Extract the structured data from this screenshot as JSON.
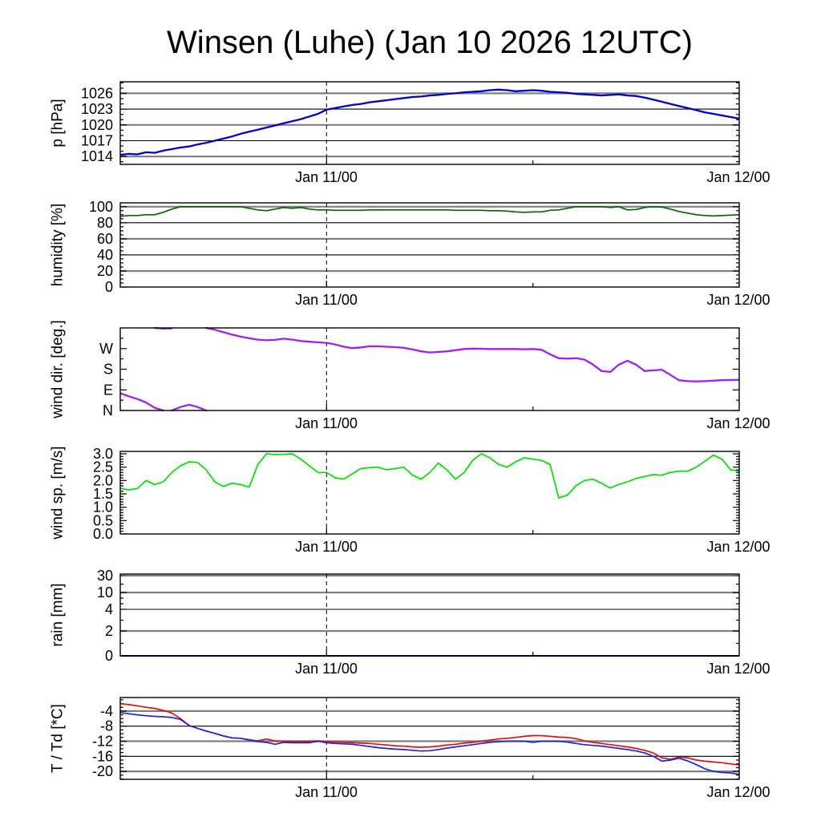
{
  "title": "Winsen (Luhe) (Jan 10 2026 12UTC)",
  "x_axis": {
    "tick_labels": [
      "Jan 11/00",
      "Jan 12/00"
    ],
    "major_tick_hours": [
      12,
      36
    ],
    "minor_tick_hours": [
      24
    ],
    "dashed_line_hours": [
      12
    ],
    "span_hours": 36
  },
  "chart_data": [
    {
      "key": "pressure",
      "type": "line",
      "ylabel": "p [hPa]",
      "scale": [
        [
          1012.5,
          0
        ],
        [
          1028.2,
          1
        ]
      ],
      "yticks": [
        {
          "v": 1014,
          "label": "1014"
        },
        {
          "v": 1017,
          "label": "1017"
        },
        {
          "v": 1020,
          "label": "1020"
        },
        {
          "v": 1023,
          "label": "1023"
        },
        {
          "v": 1026,
          "label": "1026"
        }
      ],
      "minor_step": 1,
      "grid": [
        {
          "v": 1014,
          "style": "gray"
        },
        {
          "v": 1017,
          "style": "black"
        },
        {
          "v": 1020,
          "style": "gray"
        },
        {
          "v": 1023,
          "style": "black"
        },
        {
          "v": 1026,
          "style": "gray"
        }
      ],
      "series": [
        {
          "name": "pressure",
          "color": "#0000cc",
          "width": 2.3,
          "segments": [
            {
              "start": 0,
              "step": 0.5,
              "values": [
                1014.3,
                1014.5,
                1014.4,
                1014.8,
                1014.7,
                1015.1,
                1015.4,
                1015.7,
                1015.9,
                1016.3,
                1016.6,
                1017.0,
                1017.4,
                1017.8,
                1018.3,
                1018.7,
                1019.1,
                1019.5,
                1019.9,
                1020.3,
                1020.7,
                1021.1,
                1021.6,
                1022.1,
                1022.9,
                1023.2,
                1023.5,
                1023.8,
                1024.0,
                1024.3,
                1024.5,
                1024.7,
                1024.9,
                1025.1,
                1025.3,
                1025.4,
                1025.6,
                1025.7,
                1025.9,
                1026.0,
                1026.2,
                1026.3,
                1026.4,
                1026.6,
                1026.7,
                1026.6,
                1026.4,
                1026.5,
                1026.6,
                1026.5,
                1026.3,
                1026.2,
                1026.1,
                1025.9,
                1025.8,
                1025.7,
                1025.6,
                1025.7,
                1025.8,
                1025.6,
                1025.5,
                1025.2,
                1024.8,
                1024.4,
                1024.0,
                1023.6,
                1023.2,
                1022.8,
                1022.4,
                1022.1,
                1021.8,
                1021.5,
                1021.2
              ]
            }
          ]
        }
      ]
    },
    {
      "key": "humidity",
      "type": "line",
      "ylabel": "humidity [%]",
      "scale": [
        [
          0,
          0
        ],
        [
          104.8,
          1
        ]
      ],
      "yticks": [
        {
          "v": 0,
          "label": "0"
        },
        {
          "v": 20,
          "label": "20"
        },
        {
          "v": 40,
          "label": "40"
        },
        {
          "v": 60,
          "label": "60"
        },
        {
          "v": 80,
          "label": "80"
        },
        {
          "v": 100,
          "label": "100"
        }
      ],
      "minor_step": 5,
      "grid": [
        {
          "v": 20,
          "style": "gray"
        },
        {
          "v": 40,
          "style": "black"
        },
        {
          "v": 60,
          "style": "gray"
        },
        {
          "v": 80,
          "style": "black"
        },
        {
          "v": 100,
          "style": "gray"
        }
      ],
      "series": [
        {
          "name": "humidity",
          "color": "#006400",
          "width": 1.7,
          "segments": [
            {
              "start": 0,
              "step": 0.5,
              "values": [
                88,
                89,
                89,
                90,
                90,
                93,
                97,
                100,
                100,
                100,
                100,
                100,
                100,
                100,
                100,
                98,
                96,
                95,
                97,
                99,
                98,
                99,
                97,
                96,
                96,
                95.5,
                95.5,
                95.5,
                95.5,
                96,
                96,
                96,
                96,
                96,
                96,
                96,
                96,
                96,
                96,
                95.5,
                95.5,
                95.5,
                95.5,
                95,
                95,
                94.5,
                93.5,
                93,
                93.5,
                93.5,
                95.5,
                96,
                98,
                100,
                100,
                100,
                100,
                99,
                100,
                96,
                96.5,
                99,
                100,
                99.5,
                97,
                94,
                92,
                90,
                89,
                88.5,
                89,
                89.5,
                90
              ]
            }
          ]
        }
      ]
    },
    {
      "key": "wind-dir",
      "type": "line",
      "ylabel": "wind dir. [deg.]",
      "scale": [
        [
          0,
          0
        ],
        [
          360,
          1
        ]
      ],
      "yticks": [
        {
          "v": 0,
          "label": "N"
        },
        {
          "v": 90,
          "label": "E"
        },
        {
          "v": 180,
          "label": "S"
        },
        {
          "v": 270,
          "label": "W"
        }
      ],
      "minor_list": [
        45,
        135,
        225,
        315
      ],
      "grid": [],
      "series": [
        {
          "name": "wind-direction",
          "color": "#a020f0",
          "width": 2.3,
          "segments": [
            {
              "start": 0,
              "step": 0.5,
              "values": [
                75,
                62,
                50,
                35,
                12,
                0
              ]
            },
            {
              "start": 2.0,
              "step": 0.5,
              "values": [
                360,
                357,
                358
              ]
            },
            {
              "start": 3.0,
              "step": 0.5,
              "values": [
                0,
                15,
                25,
                15,
                0
              ]
            },
            {
              "start": 5.0,
              "step": 0.5,
              "values": [
                360,
                352,
                341,
                331,
                322,
                315,
                309,
                306,
                308,
                313,
                309,
                303,
                300,
                297,
                295,
                288,
                278,
                272,
                275,
                280,
                280,
                278,
                276,
                273,
                266,
                258,
                253,
                255,
                258,
                263,
                268,
                270,
                269,
                268,
                268,
                268,
                268,
                267,
                268,
                265,
                245,
                228,
                226,
                228,
                222,
                200,
                172,
                168,
                200,
                217,
                200,
                172,
                175,
                178,
                155,
                132,
                128,
                127,
                128,
                130,
                132,
                133,
                133
              ]
            }
          ]
        }
      ]
    },
    {
      "key": "wind-speed",
      "type": "line",
      "ylabel": "wind sp. [m/s]",
      "scale": [
        [
          0,
          0
        ],
        [
          3.09,
          1
        ]
      ],
      "yticks": [
        {
          "v": 0,
          "label": "0.0"
        },
        {
          "v": 0.5,
          "label": "0.5"
        },
        {
          "v": 1.0,
          "label": "1.0"
        },
        {
          "v": 1.5,
          "label": "1.5"
        },
        {
          "v": 2.0,
          "label": "2.0"
        },
        {
          "v": 2.5,
          "label": "2.5"
        },
        {
          "v": 3.0,
          "label": "3.0"
        }
      ],
      "minor_step": 0.1,
      "grid": [],
      "series": [
        {
          "name": "wind-speed",
          "color": "#00dd00",
          "width": 1.7,
          "segments": [
            {
              "start": 0,
              "step": 0.5,
              "values": [
                1.7,
                1.65,
                1.7,
                2.0,
                1.85,
                1.95,
                2.3,
                2.55,
                2.7,
                2.68,
                2.4,
                1.95,
                1.78,
                1.9,
                1.85,
                1.75,
                2.6,
                3.0,
                2.97,
                2.98,
                3.0,
                2.8,
                2.55,
                2.3,
                2.3,
                2.1,
                2.05,
                2.25,
                2.45,
                2.48,
                2.5,
                2.4,
                2.45,
                2.5,
                2.2,
                2.05,
                2.3,
                2.65,
                2.4,
                2.05,
                2.3,
                2.75,
                3.0,
                2.85,
                2.6,
                2.5,
                2.7,
                2.85,
                2.8,
                2.75,
                2.6,
                1.35,
                1.45,
                1.8,
                2.0,
                2.05,
                1.9,
                1.72,
                1.85,
                1.95,
                2.08,
                2.15,
                2.22,
                2.2,
                2.3,
                2.35,
                2.35,
                2.5,
                2.72,
                2.95,
                2.8,
                2.4,
                2.35
              ]
            }
          ]
        }
      ]
    },
    {
      "key": "rain",
      "type": "line",
      "ylabel": "rain [mm]",
      "scale": [
        [
          0,
          0
        ],
        [
          2,
          0.304
        ],
        [
          4,
          0.569
        ],
        [
          10,
          0.775
        ],
        [
          30,
          0.98
        ],
        [
          31,
          1
        ]
      ],
      "yticks": [
        {
          "v": 0,
          "label": "0"
        },
        {
          "v": 2,
          "label": "2"
        },
        {
          "v": 4,
          "label": "4"
        },
        {
          "v": 10,
          "label": "10"
        },
        {
          "v": 30,
          "label": "30"
        }
      ],
      "minor_list": [
        1,
        3,
        6,
        8,
        20
      ],
      "grid": [
        {
          "v": 2,
          "style": "gray"
        },
        {
          "v": 4,
          "style": "black"
        },
        {
          "v": 10,
          "style": "gray"
        },
        {
          "v": 30,
          "style": "black"
        }
      ],
      "series": [
        {
          "name": "rain",
          "color": "#000080",
          "width": 2,
          "segments": [
            {
              "start": 0,
              "step": 36,
              "values": [
                0,
                0
              ]
            }
          ]
        }
      ]
    },
    {
      "key": "temperature",
      "type": "line",
      "ylabel": "T / Td [*C]",
      "scale": [
        [
          -22.1,
          0
        ],
        [
          -0.4,
          1
        ]
      ],
      "yticks": [
        {
          "v": -4,
          "label": "-4"
        },
        {
          "v": -8,
          "label": "-8"
        },
        {
          "v": -12,
          "label": "-12"
        },
        {
          "v": -16,
          "label": "-16"
        },
        {
          "v": -20,
          "label": "-20"
        }
      ],
      "minor_step": 1,
      "grid": [
        {
          "v": -20,
          "style": "gray"
        },
        {
          "v": -16,
          "style": "black"
        },
        {
          "v": -12,
          "style": "gray"
        },
        {
          "v": -8,
          "style": "black"
        },
        {
          "v": -4,
          "style": "gray"
        }
      ],
      "series": [
        {
          "name": "temperature",
          "color": "#e01010",
          "width": 1.7,
          "segments": [
            {
              "start": 0,
              "step": 0.5,
              "values": [
                -2.0,
                -2.3,
                -2.6,
                -3.0,
                -3.3,
                -3.8,
                -4.5,
                -6.0,
                -7.8,
                -8.6,
                -9.3,
                -9.9,
                -10.6,
                -11.1,
                -11.2,
                -11.6,
                -11.9,
                -11.4,
                -11.9,
                -12.0,
                -12.0,
                -12.0,
                -12.0,
                -11.9,
                -12.1,
                -12.2,
                -12.3,
                -12.4,
                -12.5,
                -12.6,
                -12.8,
                -13.0,
                -13.2,
                -13.3,
                -13.5,
                -13.6,
                -13.5,
                -13.3,
                -13.0,
                -12.8,
                -12.5,
                -12.3,
                -12.0,
                -11.7,
                -11.4,
                -11.2,
                -11.0,
                -10.7,
                -10.5,
                -10.5,
                -10.7,
                -10.9,
                -11.0,
                -11.3,
                -11.9,
                -12.3,
                -12.6,
                -12.9,
                -13.2,
                -13.5,
                -13.9,
                -14.4,
                -15.1,
                -16.4,
                -16.8,
                -16.2,
                -16.4,
                -17.0,
                -17.3,
                -17.5,
                -17.7,
                -18.0,
                -18.3
              ]
            }
          ]
        },
        {
          "name": "dew-point",
          "color": "#2222dd",
          "width": 1.7,
          "segments": [
            {
              "start": 0,
              "step": 0.5,
              "values": [
                -4.4,
                -4.7,
                -5.0,
                -5.2,
                -5.4,
                -5.5,
                -5.7,
                -6.2,
                -7.8,
                -8.6,
                -9.3,
                -9.9,
                -10.6,
                -11.1,
                -11.2,
                -11.7,
                -12.1,
                -12.3,
                -12.8,
                -12.3,
                -12.4,
                -12.4,
                -12.4,
                -12.0,
                -12.4,
                -12.6,
                -12.7,
                -12.8,
                -13.1,
                -13.4,
                -13.7,
                -13.9,
                -14.1,
                -14.2,
                -14.4,
                -14.6,
                -14.5,
                -14.2,
                -13.8,
                -13.5,
                -13.2,
                -12.9,
                -12.6,
                -12.3,
                -12.1,
                -12.0,
                -12.0,
                -12.0,
                -12.3,
                -12.0,
                -12.0,
                -12.0,
                -12.2,
                -12.6,
                -12.9,
                -13.1,
                -13.3,
                -13.6,
                -13.9,
                -14.2,
                -14.6,
                -15.1,
                -16.0,
                -17.3,
                -17.0,
                -16.5,
                -17.2,
                -18.2,
                -19.3,
                -20.0,
                -20.3,
                -20.4,
                -20.8
              ]
            }
          ]
        }
      ]
    }
  ]
}
